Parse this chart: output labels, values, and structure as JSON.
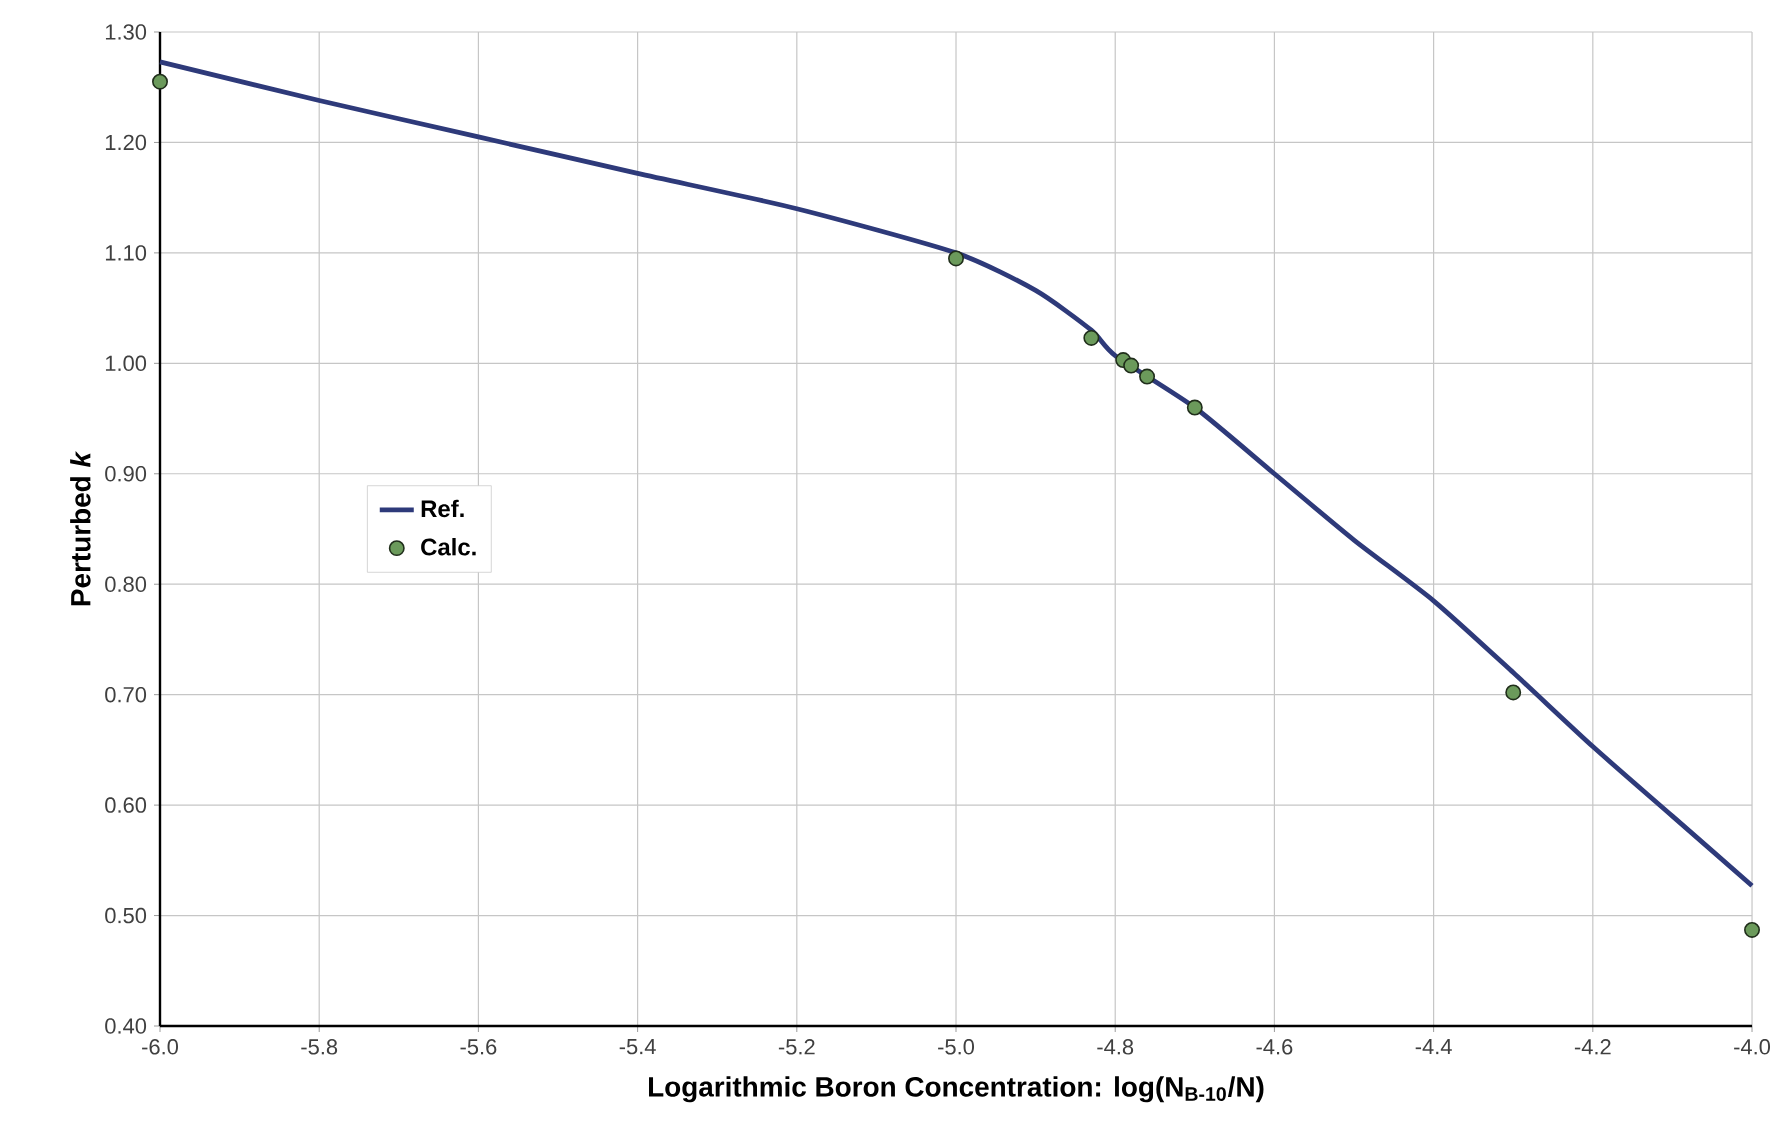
{
  "chart_data": {
    "type": "line",
    "xlabel": "Logarithmic Boron Concentration: log(N$_{B-10}$/N)",
    "ylabel": "Perturbed *k*",
    "xlim": [
      -6.0,
      -4.0
    ],
    "xticks": [
      {
        "value": -6.0,
        "label": "-6.0"
      },
      {
        "value": -5.8,
        "label": "-5.8"
      },
      {
        "value": -5.6,
        "label": "-5.6"
      },
      {
        "value": -5.4,
        "label": "-5.4"
      },
      {
        "value": -5.2,
        "label": "-5.2"
      },
      {
        "value": -5.0,
        "label": "-5.0"
      },
      {
        "value": -4.8,
        "label": "-4.8"
      },
      {
        "value": -4.6,
        "label": "-4.6"
      },
      {
        "value": -4.4,
        "label": "-4.4"
      },
      {
        "value": -4.2,
        "label": "-4.2"
      },
      {
        "value": -4.0,
        "label": "-4.0"
      }
    ],
    "ylim": [
      0.4,
      1.3
    ],
    "yticks": [
      {
        "value": 0.4,
        "label": "0.40"
      },
      {
        "value": 0.5,
        "label": "0.50"
      },
      {
        "value": 0.6,
        "label": "0.60"
      },
      {
        "value": 0.7,
        "label": "0.70"
      },
      {
        "value": 0.8,
        "label": "0.80"
      },
      {
        "value": 0.9,
        "label": "0.90"
      },
      {
        "value": 1.0,
        "label": "1.00"
      },
      {
        "value": 1.1,
        "label": "1.10"
      },
      {
        "value": 1.2,
        "label": "1.20"
      },
      {
        "value": 1.3,
        "label": "1.30"
      }
    ],
    "grid": true,
    "legend": "left",
    "series": [
      {
        "name": "Ref.",
        "color": "#2e3a7a",
        "marker": "none",
        "line_style": "solid",
        "x": [
          -6.0,
          -5.8,
          -5.6,
          -5.4,
          -5.2,
          -5.0,
          -4.9,
          -4.83,
          -4.8,
          -4.7,
          -4.6,
          -4.5,
          -4.4,
          -4.3,
          -4.2,
          -4.1,
          -4.0
        ],
        "values": [
          1.273,
          1.238,
          1.205,
          1.172,
          1.14,
          1.1,
          1.066,
          1.03,
          1.007,
          0.96,
          0.9,
          0.84,
          0.785,
          0.72,
          0.653,
          0.59,
          0.527
        ]
      },
      {
        "name": "Calc.",
        "type": "scatter",
        "color": "#6b9a5b",
        "marker": "circle",
        "x": [
          -6.0,
          -5.0,
          -4.83,
          -4.79,
          -4.78,
          -4.76,
          -4.7,
          -4.3,
          -4.0
        ],
        "values": [
          1.255,
          1.095,
          1.023,
          1.003,
          0.998,
          0.988,
          0.96,
          0.702,
          0.487
        ]
      }
    ]
  }
}
